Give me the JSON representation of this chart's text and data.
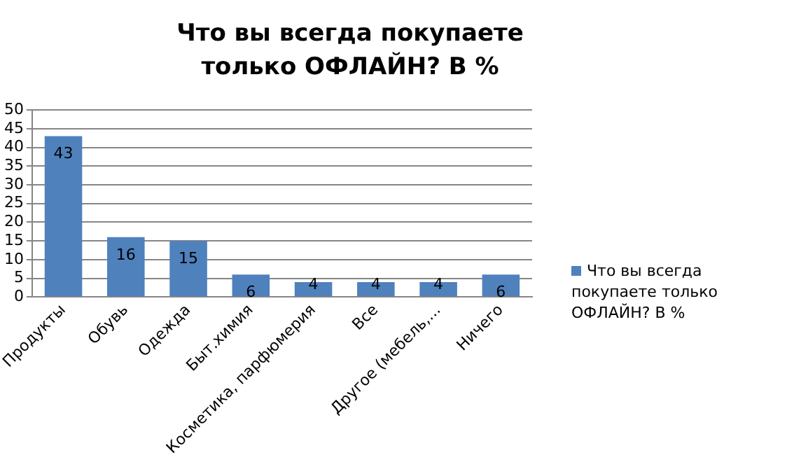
{
  "chart_data": {
    "type": "bar",
    "title": "Что вы всегда покупаете только ОФЛАЙН? В %",
    "categories": [
      "Продукты",
      "Обувь",
      "Одежда",
      "Быт.химия",
      "Косметика, парфюмерия",
      "Все",
      "Другое (мебель,...",
      "Ничего"
    ],
    "series": [
      {
        "name": "Что вы всегда покупаете только ОФЛАЙН?  В %",
        "color": "#4f81bd",
        "values": [
          43,
          16,
          15,
          6,
          4,
          4,
          4,
          6
        ]
      }
    ],
    "ylim": [
      0,
      50
    ],
    "yticks": [
      0,
      5,
      10,
      15,
      20,
      25,
      30,
      35,
      40,
      45,
      50
    ],
    "grid": "y",
    "legend": "right",
    "data_labels": true
  }
}
